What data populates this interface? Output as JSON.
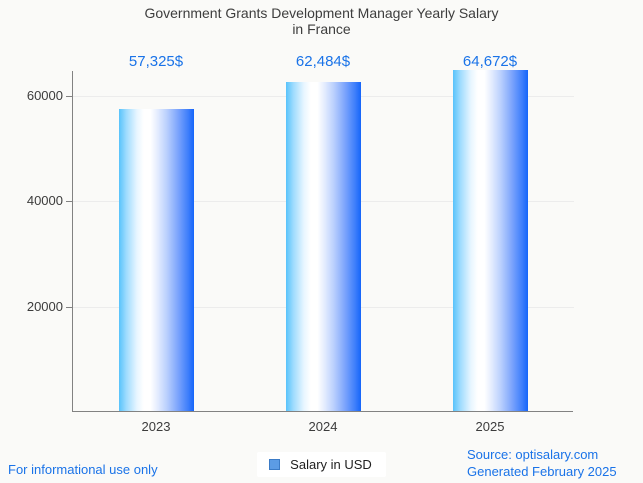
{
  "page": {
    "background_color": "#fafaf8",
    "accent_color": "#1a73e8",
    "footer_left": "For informational use only",
    "source_line1": "Source: optisalary.com",
    "source_line2": "Generated February 2025"
  },
  "chart_data": {
    "type": "bar",
    "title": "Government Grants Development Manager Yearly Salary in France",
    "title_lines": {
      "line1": "Government Grants Development Manager Yearly Salary",
      "line2": "in France"
    },
    "categories": [
      "2023",
      "2024",
      "2025"
    ],
    "values": [
      57325,
      62484,
      64672
    ],
    "value_labels": [
      "57,325$",
      "62,484$",
      "64,672$"
    ],
    "xlabel": "",
    "ylabel": "",
    "ylim": [
      0,
      64672
    ],
    "yticks": [
      20000,
      40000,
      60000
    ],
    "grid": true,
    "legend_position": "bottom",
    "series_name": "Salary in USD",
    "colors": {
      "bar_gradient_left": "#58c3fb",
      "bar_gradient_mid": "#ffffff",
      "bar_gradient_right": "#1565fa",
      "value_label_color": "#1a73e8",
      "axis_color": "#828282",
      "gridline_color": "#ececec",
      "title_color": "#3d3d3d",
      "legend_swatch_fill": "#5c9ce5",
      "legend_swatch_border": "#3b7bc6"
    }
  }
}
